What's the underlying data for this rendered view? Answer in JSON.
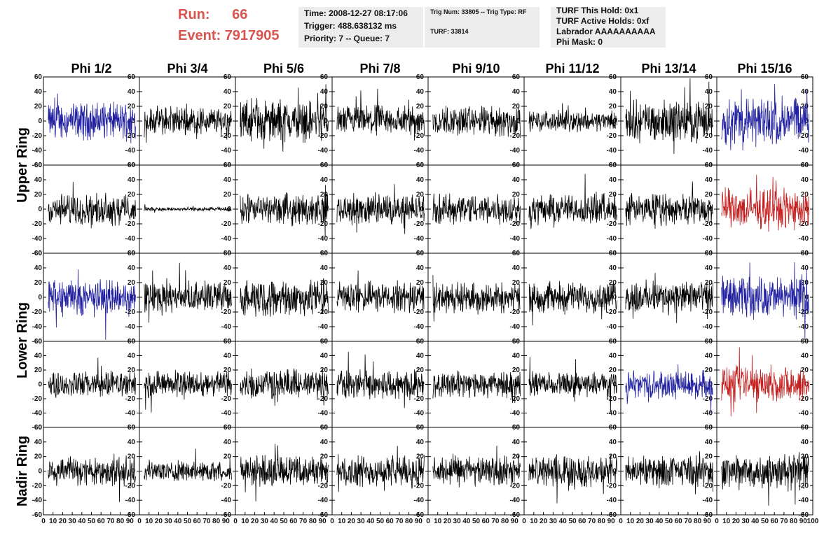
{
  "header": {
    "run_label": "Run:",
    "run_value": "66",
    "event_label": "Event:",
    "event_value": "7917905",
    "time": "Time: 2008-12-27 08:17:06",
    "trigger": "Trigger: 488.638132 ms",
    "priority": "Priority: 7 -- Queue: 7",
    "trig_num": "Trig Num: 33805 -- Trig Type: RF",
    "turf": "TURF: 33814",
    "turf_hold": "TURF This Hold: 0x1",
    "turf_active": "TURF Active Holds: 0xf",
    "labrador": "Labrador AAAAAAAAAA",
    "phi_mask": "Phi Mask: 0"
  },
  "chart_data": {
    "type": "line",
    "columns": [
      "Phi 1/2",
      "Phi 3/4",
      "Phi 5/6",
      "Phi 7/8",
      "Phi 9/10",
      "Phi 11/12",
      "Phi 13/14",
      "Phi 15/16"
    ],
    "row_groups": [
      "Upper Ring",
      "Lower Ring",
      "Nadir Ring"
    ],
    "rows": 5,
    "ylim": [
      -60,
      60
    ],
    "y_ticks": [
      -60,
      -40,
      -20,
      0,
      20,
      40,
      60
    ],
    "xlim": [
      0,
      100
    ],
    "x_tick_labels": [
      "0",
      "10",
      "20",
      "30",
      "40",
      "50",
      "60",
      "70",
      "80",
      "90",
      "100"
    ],
    "x_range_samples": [
      5,
      96
    ],
    "colors": {
      "black": "#000000",
      "blue": "#2020a0",
      "red": "#c41e1e"
    },
    "panels": [
      [
        "blue",
        "black",
        "black",
        "black",
        "black",
        "black",
        "black",
        "blue"
      ],
      [
        "black",
        "black",
        "black",
        "black",
        "black",
        "black",
        "black",
        "red"
      ],
      [
        "blue",
        "black",
        "black",
        "black",
        "black",
        "black",
        "black",
        "blue"
      ],
      [
        "black",
        "black",
        "black",
        "black",
        "black",
        "black",
        "blue",
        "red"
      ],
      [
        "black",
        "black",
        "black",
        "black",
        "black",
        "black",
        "black",
        "black"
      ]
    ],
    "amplitudes": [
      [
        18,
        14,
        20,
        15,
        15,
        10,
        20,
        24
      ],
      [
        15,
        2,
        15,
        15,
        15,
        15,
        15,
        20
      ],
      [
        18,
        15,
        18,
        15,
        15,
        15,
        16,
        20
      ],
      [
        13,
        13,
        15,
        15,
        13,
        12,
        14,
        18
      ],
      [
        15,
        10,
        15,
        15,
        15,
        15,
        15,
        18
      ]
    ]
  }
}
